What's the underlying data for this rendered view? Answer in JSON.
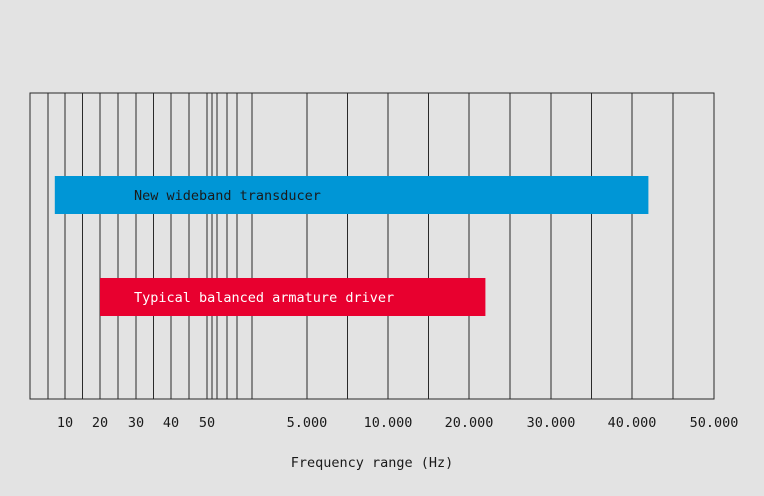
{
  "chart_data": {
    "type": "bar",
    "orientation": "horizontal",
    "xlabel": "Frequency range (Hz)",
    "tick_labels": [
      "10",
      "20",
      "30",
      "40",
      "50",
      "5.000",
      "10.000",
      "20.000",
      "30.000",
      "40.000",
      "50.000"
    ],
    "series": [
      {
        "name": "New wideband transducer",
        "start_hz": 7,
        "end_hz": 42000,
        "color": "#0096d6"
      },
      {
        "name": "Typical balanced armature driver",
        "start_hz": 20,
        "end_hz": 22000,
        "color": "#e8002f"
      }
    ],
    "grid": true
  }
}
